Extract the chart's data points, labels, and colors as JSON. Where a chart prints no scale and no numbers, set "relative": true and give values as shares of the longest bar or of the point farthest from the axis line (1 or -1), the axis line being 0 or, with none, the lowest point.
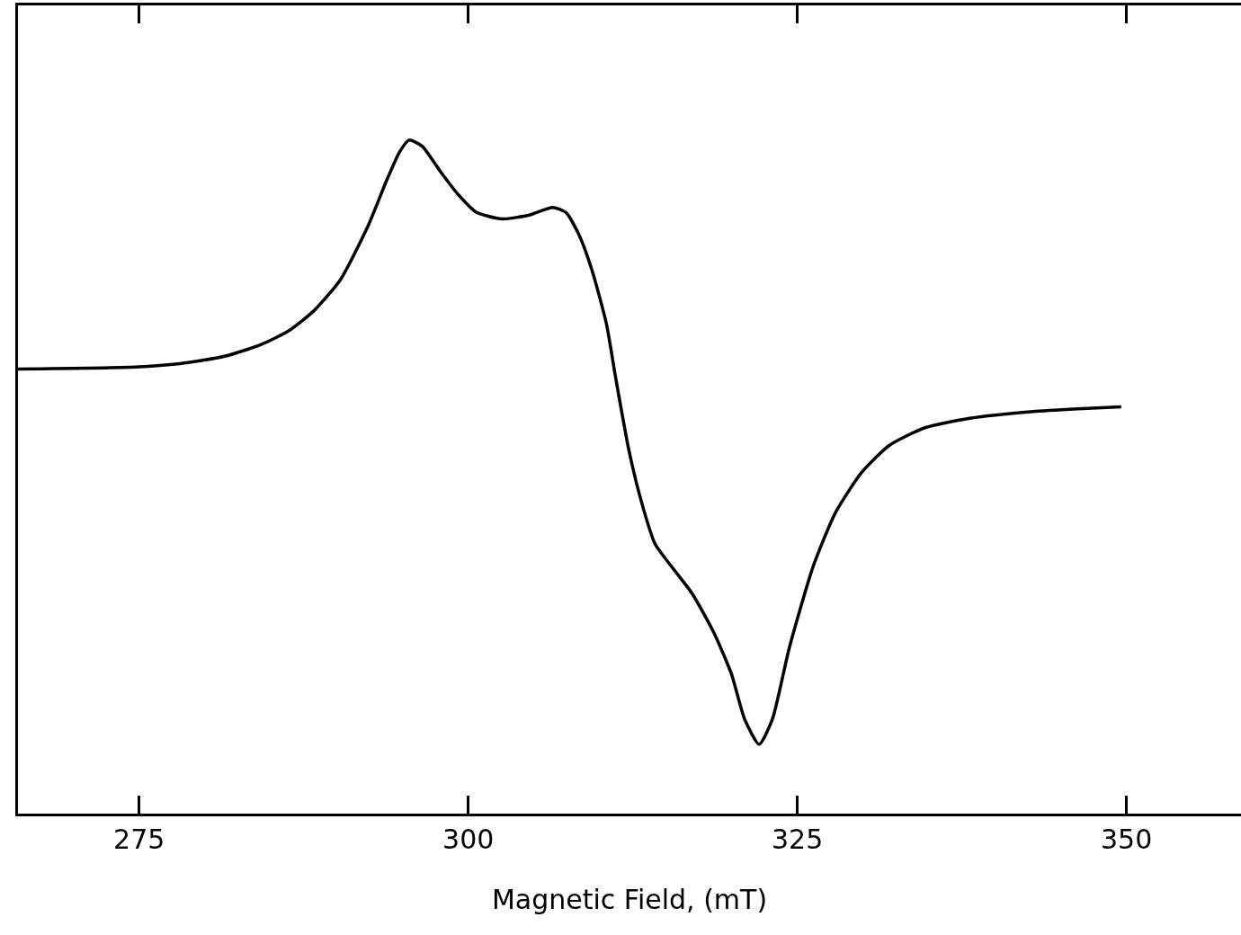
{
  "chart_data": {
    "type": "line",
    "xlabel": "Magnetic Field, (mT)",
    "relative": true,
    "xlim": [
      265.8,
      358.7
    ],
    "xticks": [
      275,
      300,
      325,
      350
    ],
    "grid": false,
    "marker": "none",
    "line_style": "solid",
    "x": [
      265.8,
      274.7,
      278.1,
      281.5,
      284.2,
      286.3,
      288.3,
      290.3,
      292.4,
      293.8,
      294.8,
      295.5,
      296.5,
      297.9,
      299.2,
      300.6,
      302.6,
      304.7,
      306.4,
      307.4,
      308.4,
      309.4,
      310.5,
      311.2,
      312.2,
      313.2,
      314.2,
      315.2,
      317.0,
      318.7,
      320.0,
      321.0,
      322.1,
      323.1,
      324.4,
      326.2,
      327.9,
      329.9,
      332.0,
      334.7,
      338.1,
      342.9,
      346.3,
      349.6
    ],
    "series": [
      {
        "color": "#000000",
        "values": [
          0.66,
          0.663,
          0.668,
          0.679,
          0.696,
          0.716,
          0.747,
          0.793,
          0.873,
          0.94,
          0.983,
          1.0,
          0.991,
          0.953,
          0.92,
          0.893,
          0.883,
          0.889,
          0.9,
          0.893,
          0.86,
          0.807,
          0.727,
          0.647,
          0.54,
          0.46,
          0.4,
          0.373,
          0.327,
          0.267,
          0.207,
          0.14,
          0.103,
          0.14,
          0.247,
          0.367,
          0.447,
          0.507,
          0.547,
          0.573,
          0.587,
          0.597,
          0.601,
          0.604
        ]
      }
    ]
  }
}
